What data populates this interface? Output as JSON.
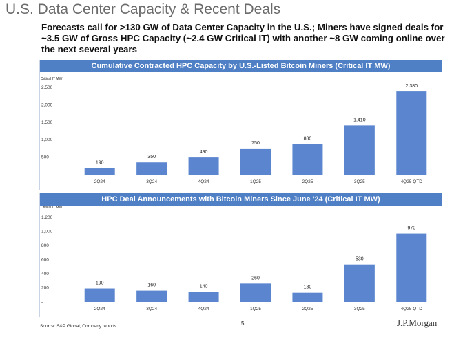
{
  "page": {
    "title": "U.S. Data Center Capacity & Recent Deals",
    "subtitle": "Forecasts call for >130 GW of Data Center Capacity in the U.S.; Miners have signed deals for ~3.5 GW of Gross HPC Capacity (~2.4 GW Critical IT) with another ~8 GW coming online over the next several years",
    "source": "Source: S&P Global, Company reports",
    "page_number": "5",
    "logo": "J.P.Morgan"
  },
  "colors": {
    "header": "#4f7fc4",
    "bar": "#5b86cf"
  },
  "chart_data": [
    {
      "type": "bar",
      "title": "Cumulative Contracted HPC Capacity by U.S.-Listed Bitcoin Miners (Critical IT MW)",
      "ylabel": "Critical IT MW",
      "ylim": [
        0,
        2500
      ],
      "yticks": [
        0,
        500,
        1000,
        1500,
        2000,
        2500
      ],
      "ytick_labels": [
        "-",
        "500",
        "1,000",
        "1,500",
        "2,000",
        "2,500"
      ],
      "categories": [
        "2Q24",
        "3Q24",
        "4Q24",
        "1Q25",
        "2Q25",
        "3Q25",
        "4Q25 QTD"
      ],
      "values": [
        190,
        350,
        490,
        750,
        880,
        1410,
        2380
      ],
      "value_labels": [
        "190",
        "350",
        "490",
        "750",
        "880",
        "1,410",
        "2,380"
      ]
    },
    {
      "type": "bar",
      "title": "HPC Deal Announcements with Bitcoin Miners Since June '24 (Critical IT MW)",
      "ylabel": "Critical IT MW",
      "ylim": [
        0,
        1200
      ],
      "yticks": [
        0,
        200,
        400,
        600,
        800,
        1000,
        1200
      ],
      "ytick_labels": [
        "-",
        "200",
        "400",
        "600",
        "800",
        "1,000",
        "1,200"
      ],
      "categories": [
        "2Q24",
        "3Q24",
        "4Q24",
        "1Q25",
        "2Q25",
        "3Q25",
        "4Q25 QTD"
      ],
      "values": [
        190,
        160,
        140,
        260,
        130,
        530,
        970
      ],
      "value_labels": [
        "190",
        "160",
        "140",
        "260",
        "130",
        "530",
        "970"
      ]
    }
  ]
}
